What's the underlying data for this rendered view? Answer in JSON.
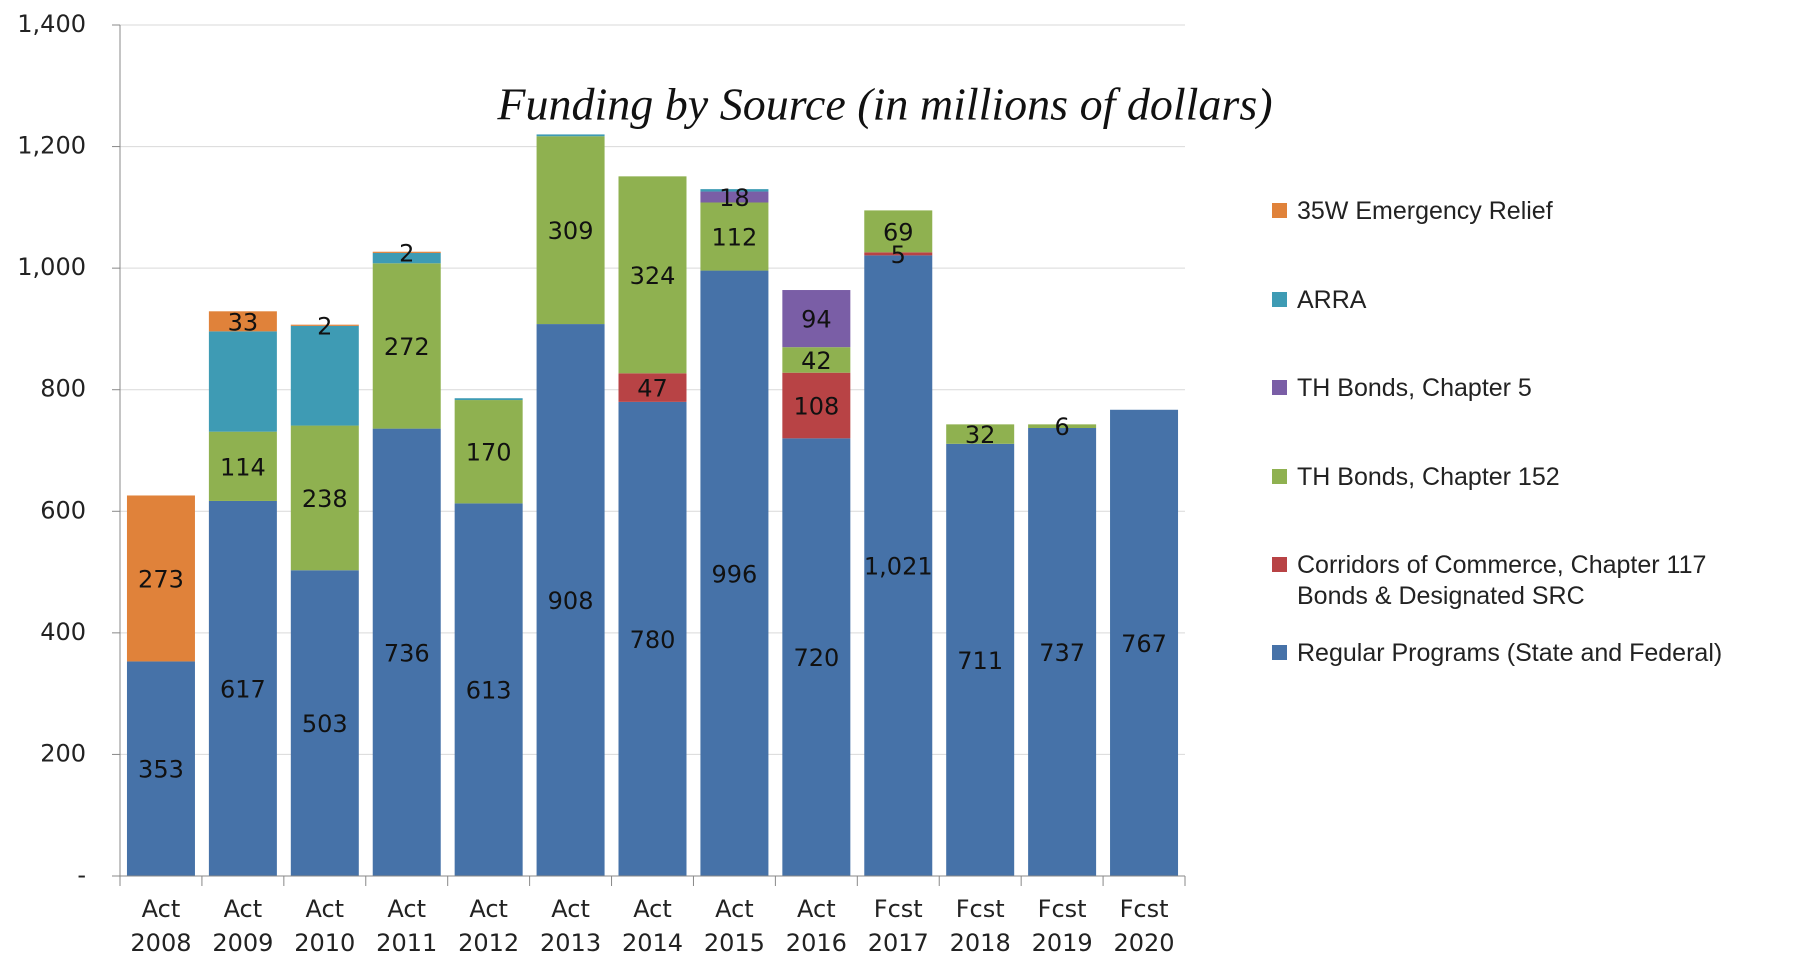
{
  "chart_data": {
    "type": "stacked_bar",
    "title": "Funding by Source (in millions of dollars)",
    "categories": [
      "Act 2008",
      "Act 2009",
      "Act 2010",
      "Act 2011",
      "Act 2012",
      "Act 2013",
      "Act 2014",
      "Act 2015",
      "Act 2016",
      "Fcst 2017",
      "Fcst 2018",
      "Fcst 2019",
      "Fcst 2020"
    ],
    "series": [
      {
        "name": "Regular Programs (State and Federal)",
        "color": "#4672a8",
        "values": [
          353,
          617,
          503,
          736,
          613,
          908,
          780,
          996,
          720,
          1021,
          711,
          737,
          767
        ],
        "value_labels": [
          "353",
          "617",
          "503",
          "736",
          "613",
          "908",
          "780",
          "996",
          "720",
          "1,021",
          "711",
          "737",
          "767"
        ]
      },
      {
        "name": "Corridors of Commerce, Chapter 117 Bonds & Designated SRC",
        "color": "#b84345",
        "values": [
          null,
          null,
          null,
          null,
          null,
          null,
          47,
          null,
          108,
          5,
          null,
          null,
          null
        ],
        "value_labels": [
          null,
          null,
          null,
          null,
          null,
          null,
          "47",
          null,
          "108",
          "5",
          null,
          null,
          null
        ]
      },
      {
        "name": "TH Bonds, Chapter 152",
        "color": "#8fb150",
        "values": [
          null,
          114,
          238,
          272,
          170,
          309,
          324,
          112,
          42,
          69,
          32,
          6,
          null
        ],
        "value_labels": [
          null,
          "114",
          "238",
          "272",
          "170",
          "309",
          "324",
          "112",
          "42",
          "69",
          "32",
          "6",
          null
        ]
      },
      {
        "name": "TH Bonds, Chapter 5",
        "color": "#7a5ea6",
        "values": [
          null,
          null,
          null,
          null,
          null,
          null,
          null,
          18,
          94,
          null,
          null,
          null,
          null
        ],
        "value_labels": [
          null,
          null,
          null,
          null,
          null,
          null,
          null,
          "18",
          "94",
          null,
          null,
          null,
          null
        ]
      },
      {
        "name": "ARRA",
        "color": "#3e9bb4",
        "values": [
          null,
          165,
          164,
          17,
          3,
          3,
          null,
          4,
          null,
          null,
          null,
          null,
          null
        ],
        "value_labels": [
          null,
          null,
          null,
          null,
          null,
          null,
          null,
          null,
          null,
          null,
          null,
          null,
          null
        ]
      },
      {
        "name": "35W Emergency Relief",
        "color": "#e0823a",
        "values": [
          273,
          33,
          2,
          2,
          null,
          null,
          null,
          null,
          null,
          null,
          null,
          null,
          null
        ],
        "value_labels": [
          "273",
          "33",
          "2",
          "2",
          null,
          null,
          null,
          null,
          null,
          null,
          null,
          null,
          null
        ]
      }
    ],
    "ylim": [
      0,
      1400
    ],
    "yticks": [
      {
        "value": 0,
        "label": "-"
      },
      200,
      400,
      600,
      800,
      {
        "value": 1000,
        "label": "1,000"
      },
      {
        "value": 1200,
        "label": "1,200"
      },
      {
        "value": 1400,
        "label": "1,400"
      }
    ],
    "grid": true
  }
}
